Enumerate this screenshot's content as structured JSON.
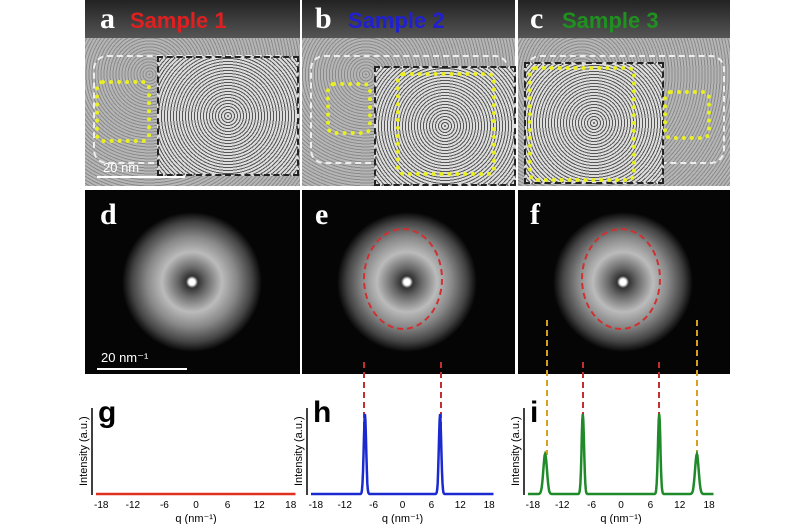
{
  "panels": {
    "a": {
      "letter": "a",
      "title": "Sample 1",
      "color": "#e02020",
      "scale": "20 nm"
    },
    "b": {
      "letter": "b",
      "title": "Sample 2",
      "color": "#2020d0"
    },
    "c": {
      "letter": "c",
      "title": "Sample 3",
      "color": "#209020"
    },
    "d": {
      "letter": "d",
      "scale": "20 nm⁻¹"
    },
    "e": {
      "letter": "e"
    },
    "f": {
      "letter": "f"
    }
  },
  "chart_data": [
    {
      "type": "line",
      "panel": "g",
      "color": "#e03020",
      "xlabel": "q (nm⁻¹)",
      "ylabel": "Intensity (a.u.)",
      "xlim": [
        -19,
        19
      ],
      "xticks": [
        -18,
        -12,
        -6,
        0,
        6,
        12,
        18
      ],
      "peaks": []
    },
    {
      "type": "line",
      "panel": "h",
      "color": "#1a2ad0",
      "xlabel": "q (nm⁻¹)",
      "ylabel": "Intensity (a.u.)",
      "xlim": [
        -19,
        19
      ],
      "xticks": [
        -18,
        -12,
        -6,
        0,
        6,
        12,
        18
      ],
      "peaks": [
        {
          "q": -7.8,
          "height": 1.0
        },
        {
          "q": 7.8,
          "height": 1.0
        }
      ]
    },
    {
      "type": "line",
      "panel": "i",
      "color": "#1f8a2a",
      "xlabel": "q (nm⁻¹)",
      "ylabel": "Intensity (a.u.)",
      "xlim": [
        -19,
        19
      ],
      "xticks": [
        -18,
        -12,
        -6,
        0,
        6,
        12,
        18
      ],
      "peaks": [
        {
          "q": -15.5,
          "height": 0.5
        },
        {
          "q": -7.8,
          "height": 1.0
        },
        {
          "q": 7.8,
          "height": 1.0
        },
        {
          "q": 15.5,
          "height": 0.5
        }
      ]
    }
  ]
}
